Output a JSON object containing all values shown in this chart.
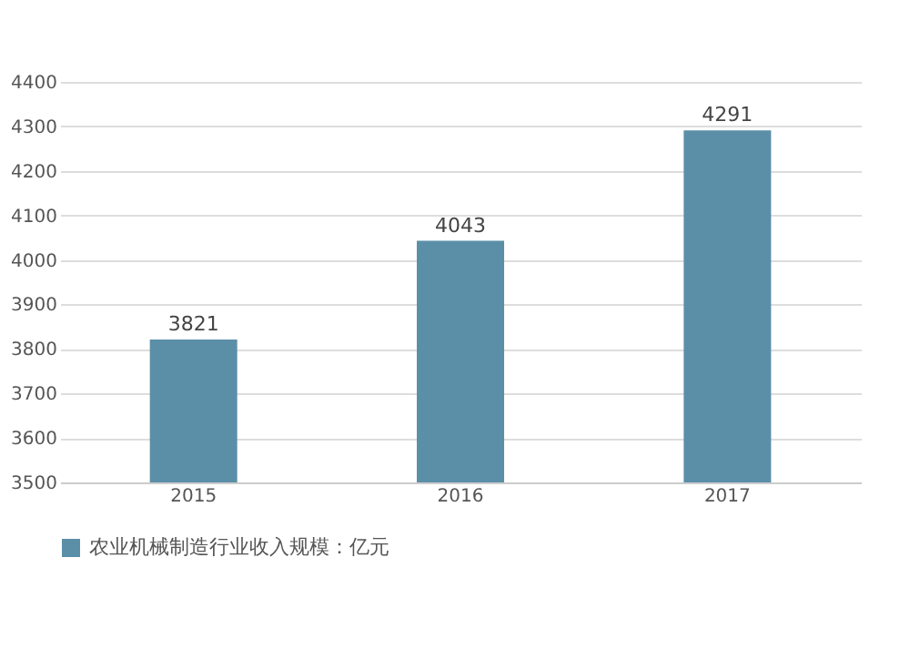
{
  "chart_data": {
    "type": "bar",
    "categories": [
      "2015",
      "2016",
      "2017"
    ],
    "series": [
      {
        "name": "农业机械制造行业收入规模：亿元",
        "color": "#5b8fa8",
        "values": [
          3821,
          4043,
          4291
        ]
      }
    ],
    "ylim": [
      3500,
      4400
    ],
    "yticks": [
      3500,
      3600,
      3700,
      3800,
      3900,
      4000,
      4100,
      4200,
      4300,
      4400
    ],
    "grid": "y",
    "legend": "bottom",
    "data_labels": true
  }
}
